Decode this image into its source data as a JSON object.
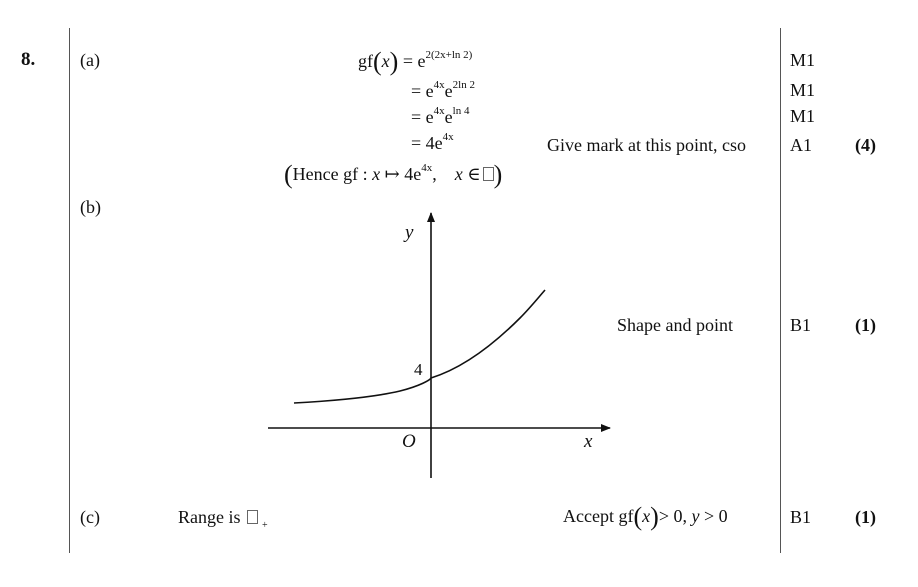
{
  "question": {
    "number": "8."
  },
  "part_a": {
    "label": "(a)",
    "lines": [
      {
        "lhs_pre": "gf",
        "lhs_var": "x",
        "rel": "=",
        "base": "e",
        "exp": "2(2x+ln 2)"
      },
      {
        "rel": "=",
        "t1": "e",
        "e1": "4x",
        "t2": "e",
        "e2": "2ln 2"
      },
      {
        "rel": "=",
        "t1": "e",
        "e1": "4x",
        "t2": "e",
        "e2": "ln 4"
      },
      {
        "rel": "=",
        "coef": "4",
        "t1": "e",
        "e1": "4x"
      }
    ],
    "hence": {
      "word": "Hence",
      "fn": "gf :",
      "var": "x",
      "maps": "↦",
      "coef": "4",
      "base": "e",
      "exp": "4x",
      "dom_var": "x",
      "in": "∈"
    },
    "note": "Give mark at this point, cso",
    "marks": [
      "M1",
      "M1",
      "M1",
      "A1"
    ],
    "total": "(4)"
  },
  "part_b": {
    "label": "(b)",
    "graph": {
      "y_label": "y",
      "x_label": "x",
      "origin": "O",
      "intercept": "4"
    },
    "note": "Shape and point",
    "mark": "B1",
    "total": "(1)"
  },
  "part_c": {
    "label": "(c)",
    "text": "Range is",
    "set_sub": "+",
    "accept": {
      "word": "Accept",
      "fn": "gf",
      "var": "x",
      "cond1": "> 0,",
      "yvar": "y",
      "cond2": "> 0"
    },
    "mark": "B1",
    "total": "(1)"
  }
}
